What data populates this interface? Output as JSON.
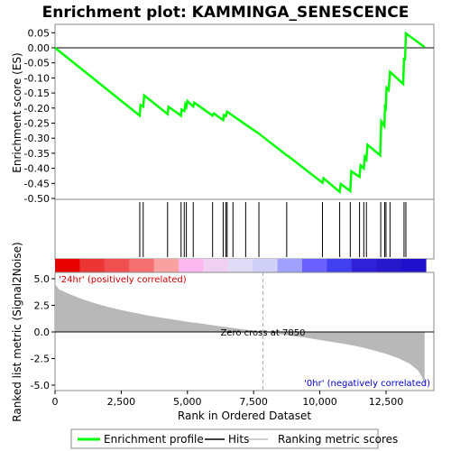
{
  "chart_data": {
    "type": "line",
    "title": "Enrichment plot: KAMMINGA_SENESCENCE",
    "xlabel": "Rank in Ordered Dataset",
    "x_ticks": [
      0,
      2500,
      5000,
      7500,
      10000,
      12500
    ],
    "x_tick_labels": [
      "0",
      "2,500",
      "5,000",
      "7,500",
      "10,000",
      "12,500"
    ],
    "xlim": [
      0,
      14000
    ],
    "top_panel": {
      "ylabel": "Enrichment score (ES)",
      "ylim": [
        -0.5,
        0.07
      ],
      "y_ticks": [
        0.05,
        0.0,
        -0.05,
        -0.1,
        -0.15,
        -0.2,
        -0.25,
        -0.3,
        -0.35,
        -0.4,
        -0.45,
        -0.5
      ],
      "y_tick_labels": [
        "0.05",
        "0.00",
        "-0.05",
        "-0.10",
        "-0.15",
        "-0.20",
        "-0.25",
        "-0.30",
        "-0.35",
        "-0.40",
        "-0.45",
        "-0.50"
      ],
      "series": [
        {
          "name": "Enrichment profile",
          "color": "#00ff00",
          "points": [
            [
              0,
              0.0
            ],
            [
              3200,
              -0.225
            ],
            [
              3230,
              -0.19
            ],
            [
              3330,
              -0.195
            ],
            [
              3370,
              -0.158
            ],
            [
              4250,
              -0.22
            ],
            [
              4290,
              -0.196
            ],
            [
              4760,
              -0.225
            ],
            [
              4780,
              -0.205
            ],
            [
              4880,
              -0.21
            ],
            [
              4920,
              -0.188
            ],
            [
              4960,
              -0.196
            ],
            [
              5000,
              -0.177
            ],
            [
              5220,
              -0.195
            ],
            [
              5260,
              -0.182
            ],
            [
              5950,
              -0.225
            ],
            [
              6000,
              -0.218
            ],
            [
              6350,
              -0.24
            ],
            [
              6380,
              -0.223
            ],
            [
              6450,
              -0.227
            ],
            [
              6500,
              -0.212
            ],
            [
              7200,
              -0.255
            ],
            [
              7700,
              -0.285
            ],
            [
              8750,
              -0.357
            ],
            [
              8800,
              -0.359
            ],
            [
              10100,
              -0.448
            ],
            [
              10140,
              -0.433
            ],
            [
              10750,
              -0.478
            ],
            [
              10790,
              -0.452
            ],
            [
              11150,
              -0.475
            ],
            [
              11190,
              -0.41
            ],
            [
              11500,
              -0.428
            ],
            [
              11540,
              -0.39
            ],
            [
              11660,
              -0.4
            ],
            [
              11700,
              -0.362
            ],
            [
              11760,
              -0.37
            ],
            [
              11800,
              -0.322
            ],
            [
              12280,
              -0.357
            ],
            [
              12320,
              -0.244
            ],
            [
              12440,
              -0.26
            ],
            [
              12460,
              -0.196
            ],
            [
              12490,
              -0.2
            ],
            [
              12520,
              -0.133
            ],
            [
              12600,
              -0.14
            ],
            [
              12650,
              -0.08
            ],
            [
              13150,
              -0.12
            ],
            [
              13180,
              -0.037
            ],
            [
              13220,
              -0.038
            ],
            [
              13250,
              0.048
            ],
            [
              13960,
              0.002
            ]
          ]
        }
      ],
      "hits": [
        3200,
        3330,
        4250,
        4760,
        4880,
        4960,
        5220,
        5950,
        6350,
        6450,
        6500,
        6720,
        7200,
        7700,
        8750,
        10100,
        10750,
        11150,
        11500,
        11660,
        11760,
        12300,
        12450,
        12500,
        12650,
        13180,
        13250
      ]
    },
    "color_bar": {
      "colors": [
        "#e60000",
        "#ec3636",
        "#f05050",
        "#f57070",
        "#f9a0a0",
        "#fbb8ee",
        "#f0d0f0",
        "#e0dcf8",
        "#d0d0f8",
        "#a0a0ff",
        "#6a60ff",
        "#4040ee",
        "#3020d8",
        "#2818cc",
        "#2010cc"
      ]
    },
    "bottom_panel": {
      "ylabel": "Ranked list metric (Signal2Noise)",
      "ylim": [
        -5.2,
        5.8
      ],
      "y_ticks": [
        5.0,
        2.5,
        0.0,
        -2.5,
        -5.0
      ],
      "y_tick_labels": [
        "5.0",
        "2.5",
        "0.0",
        "-2.5",
        "-5.0"
      ],
      "metric_curve": [
        [
          0,
          4.5
        ],
        [
          150,
          4.0
        ],
        [
          500,
          3.6
        ],
        [
          1000,
          3.1
        ],
        [
          1500,
          2.7
        ],
        [
          2000,
          2.35
        ],
        [
          2500,
          2.05
        ],
        [
          3000,
          1.8
        ],
        [
          3500,
          1.55
        ],
        [
          4000,
          1.35
        ],
        [
          4500,
          1.15
        ],
        [
          5000,
          0.95
        ],
        [
          5500,
          0.8
        ],
        [
          6000,
          0.62
        ],
        [
          6500,
          0.45
        ],
        [
          7000,
          0.28
        ],
        [
          7500,
          0.12
        ],
        [
          7850,
          0.0
        ],
        [
          8500,
          -0.2
        ],
        [
          9000,
          -0.38
        ],
        [
          9500,
          -0.55
        ],
        [
          10000,
          -0.75
        ],
        [
          10500,
          -0.95
        ],
        [
          11000,
          -1.15
        ],
        [
          11500,
          -1.4
        ],
        [
          12000,
          -1.7
        ],
        [
          12500,
          -2.05
        ],
        [
          13000,
          -2.5
        ],
        [
          13400,
          -3.0
        ],
        [
          13700,
          -3.6
        ],
        [
          13850,
          -4.2
        ],
        [
          13960,
          -5.0
        ]
      ],
      "zero_cross_rank": 7850,
      "zero_cross_label": "Zero cross at 7850",
      "positive_label": "'24hr' (positively correlated)",
      "negative_label": "'0hr' (negatively correlated)"
    },
    "legend": {
      "placement": "bottom",
      "items": [
        {
          "label": "Enrichment profile",
          "color": "#00ff00"
        },
        {
          "label": "Hits",
          "color": "#000000"
        },
        {
          "label": "Ranking metric scores",
          "color": "#c0c0c0"
        }
      ]
    }
  }
}
